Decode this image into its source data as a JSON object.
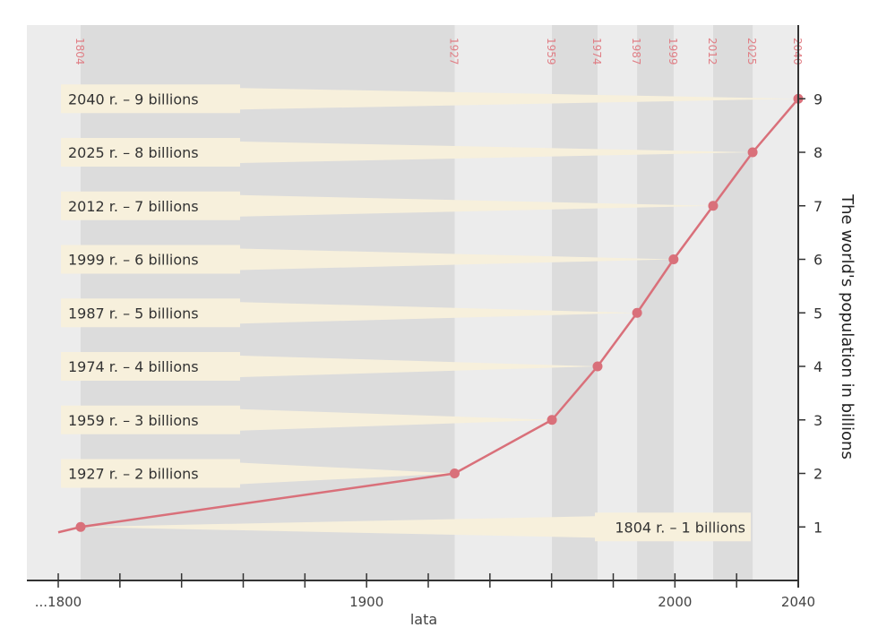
{
  "chart_data": {
    "type": "line",
    "title": "",
    "xlabel": "lata",
    "ylabel": "The world's population in billions",
    "x_tick_labels": [
      "...1800",
      "1900",
      "2000",
      "2040"
    ],
    "x_minor_ticks": [
      1820,
      1840,
      1860,
      1880,
      1920,
      1940,
      1960,
      1980,
      2020
    ],
    "y_ticks": [
      1,
      2,
      3,
      4,
      5,
      6,
      7,
      8,
      9
    ],
    "ylim": [
      0,
      10
    ],
    "xlim": [
      1800,
      2040
    ],
    "grid": false,
    "line_start": {
      "x": 1800,
      "y": 0.9
    },
    "points": [
      {
        "x": 1804,
        "y": 1,
        "label": "1804 r. – 1 billions"
      },
      {
        "x": 1927,
        "y": 2,
        "label": "1927 r. – 2 billions"
      },
      {
        "x": 1959,
        "y": 3,
        "label": "1959 r. – 3 billions"
      },
      {
        "x": 1974,
        "y": 4,
        "label": "1974 r. – 4 billions"
      },
      {
        "x": 1987,
        "y": 5,
        "label": "1987 r. – 5 billions"
      },
      {
        "x": 1999,
        "y": 6,
        "label": "1999 r. – 6 billions"
      },
      {
        "x": 2012,
        "y": 7,
        "label": "2012 r. – 7 billions"
      },
      {
        "x": 2025,
        "y": 8,
        "label": "2025 r. – 8 billions"
      },
      {
        "x": 2040,
        "y": 9,
        "label": "2040 r. – 9 billions"
      }
    ],
    "year_markers": [
      "1804",
      "1927",
      "1959",
      "1974",
      "1987",
      "1999",
      "2012",
      "2025",
      "2040"
    ],
    "shaded_bands": [
      [
        1804,
        1927
      ],
      [
        1959,
        1974
      ],
      [
        1987,
        1999
      ],
      [
        2012,
        2025
      ]
    ],
    "colors": {
      "line": "#d9707a",
      "marker_text": "#e07f86",
      "callout": "#f7f0dc",
      "plot_bg": "#ececec",
      "band": "#dcdcdc",
      "axis": "#333333"
    }
  }
}
